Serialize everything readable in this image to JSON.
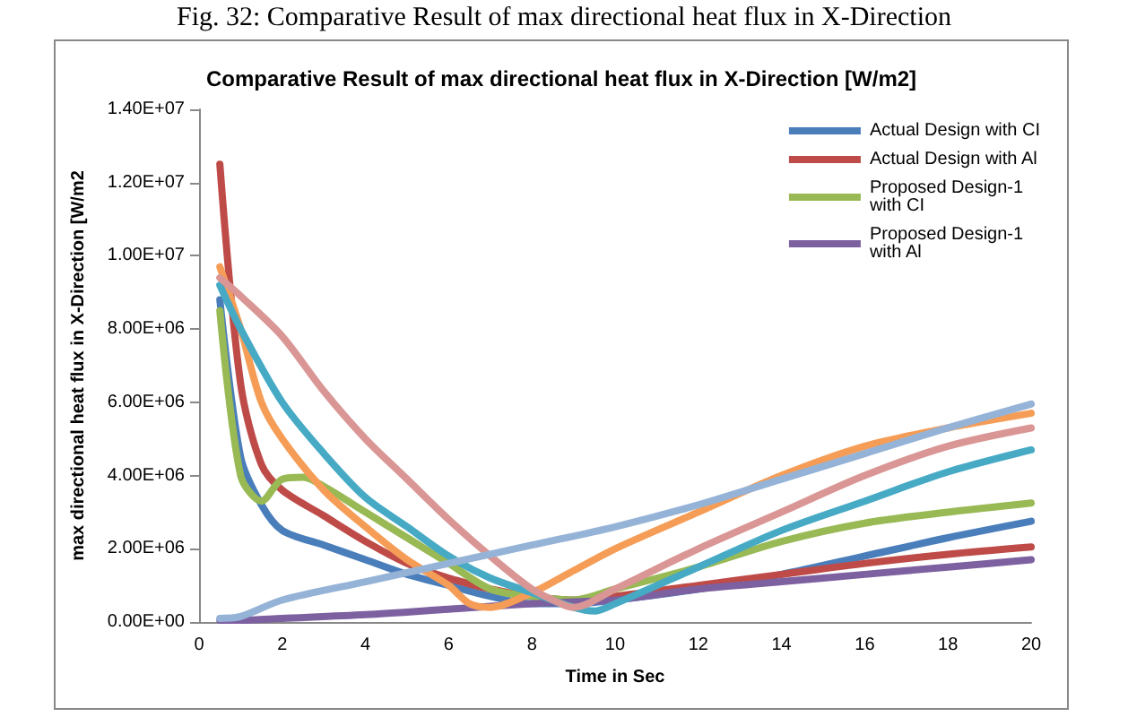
{
  "chart_data": {
    "type": "line",
    "title": "Comparative Result of max directional heat flux in X-Direction [W/m2]",
    "annotations": [
      "Fig. 32: Comparative Result of max directional heat flux in X-Direction"
    ],
    "xlabel": "Time in Sec",
    "ylabel": "max directional heat flux in X-Direction [W/m2",
    "xlim": [
      0,
      20
    ],
    "xticks": [
      0,
      2,
      4,
      6,
      8,
      10,
      12,
      14,
      16,
      18,
      20
    ],
    "ylim": [
      0,
      14000000
    ],
    "yticks": [
      {
        "value": 0,
        "label": "0.00E+00"
      },
      {
        "value": 2000000,
        "label": "2.00E+06"
      },
      {
        "value": 4000000,
        "label": "4.00E+06"
      },
      {
        "value": 6000000,
        "label": "6.00E+06"
      },
      {
        "value": 8000000,
        "label": "8.00E+06"
      },
      {
        "value": 10000000,
        "label": "1.00E+07"
      },
      {
        "value": 12000000,
        "label": "1.20E+07"
      },
      {
        "value": 14000000,
        "label": "1.40E+07"
      }
    ],
    "grid": false,
    "legend": "top right",
    "marker": "none",
    "line_style": "solid",
    "series": [
      {
        "name": "Actual Design with CI",
        "color": "#4a7ebb",
        "x": [
          0.5,
          1,
          1.5,
          2,
          3,
          4,
          5,
          6,
          7,
          8,
          9,
          10,
          12,
          14,
          16,
          18,
          20
        ],
        "values": [
          8800000,
          4500000,
          3200000,
          2500000,
          2100000,
          1700000,
          1300000,
          1000000,
          700000,
          500000,
          500000,
          600000,
          900000,
          1300000,
          1800000,
          2300000,
          2750000
        ]
      },
      {
        "name": "Actual Design with Al",
        "color": "#be4b48",
        "x": [
          0.5,
          1,
          1.5,
          2,
          3,
          4,
          5,
          6,
          7,
          8,
          9,
          10,
          12,
          14,
          16,
          18,
          20
        ],
        "values": [
          12500000,
          6500000,
          4300000,
          3600000,
          2900000,
          2200000,
          1600000,
          1200000,
          900000,
          700000,
          600000,
          700000,
          1000000,
          1300000,
          1600000,
          1850000,
          2050000
        ]
      },
      {
        "name": "Proposed Design-1 with CI",
        "color": "#98b954",
        "x": [
          0.5,
          1,
          1.5,
          2,
          2.5,
          3,
          4,
          5,
          6,
          7,
          8,
          9,
          10,
          12,
          14,
          16,
          18,
          20
        ],
        "values": [
          8500000,
          4000000,
          3300000,
          3900000,
          3950000,
          3700000,
          3000000,
          2300000,
          1600000,
          900000,
          700000,
          600000,
          900000,
          1500000,
          2200000,
          2700000,
          3000000,
          3250000
        ]
      },
      {
        "name": "Proposed Design-1 with Al",
        "color": "#7d60a0",
        "x": [
          0.5,
          1,
          2,
          4,
          6,
          8,
          9,
          10,
          12,
          14,
          16,
          18,
          20
        ],
        "values": [
          50000,
          50000,
          100000,
          200000,
          350000,
          500000,
          550000,
          600000,
          900000,
          1100000,
          1300000,
          1500000,
          1700000
        ]
      },
      {
        "color": "#f59d56",
        "x": [
          0.5,
          1,
          1.5,
          2,
          3,
          4,
          5,
          6,
          6.5,
          7,
          8,
          9,
          10,
          12,
          14,
          16,
          18,
          20
        ],
        "values": [
          9700000,
          8000000,
          6000000,
          5000000,
          3600000,
          2600000,
          1700000,
          1000000,
          500000,
          400000,
          800000,
          1400000,
          2000000,
          3000000,
          4000000,
          4800000,
          5300000,
          5700000
        ]
      },
      {
        "color": "#46aac5",
        "x": [
          0.5,
          1,
          2,
          3,
          4,
          5,
          6,
          7,
          8,
          9,
          9.5,
          10,
          12,
          14,
          16,
          18,
          20
        ],
        "values": [
          9200000,
          8000000,
          6000000,
          4600000,
          3400000,
          2600000,
          1800000,
          1200000,
          800000,
          400000,
          300000,
          500000,
          1500000,
          2500000,
          3300000,
          4100000,
          4700000
        ]
      },
      {
        "color": "#d99694",
        "x": [
          0.5,
          1,
          2,
          3,
          4,
          5,
          6,
          7,
          8,
          8.8,
          9,
          10,
          12,
          14,
          16,
          18,
          20
        ],
        "values": [
          9400000,
          8900000,
          7800000,
          6300000,
          5000000,
          3900000,
          2800000,
          1800000,
          900000,
          450000,
          400000,
          900000,
          2000000,
          3000000,
          4000000,
          4800000,
          5300000
        ]
      },
      {
        "color": "#95b3d7",
        "x": [
          0.5,
          1,
          2,
          4,
          6,
          8,
          10,
          12,
          14,
          16,
          18,
          20
        ],
        "values": [
          100000,
          150000,
          600000,
          1100000,
          1600000,
          2100000,
          2600000,
          3200000,
          3900000,
          4600000,
          5300000,
          5950000
        ]
      }
    ]
  }
}
